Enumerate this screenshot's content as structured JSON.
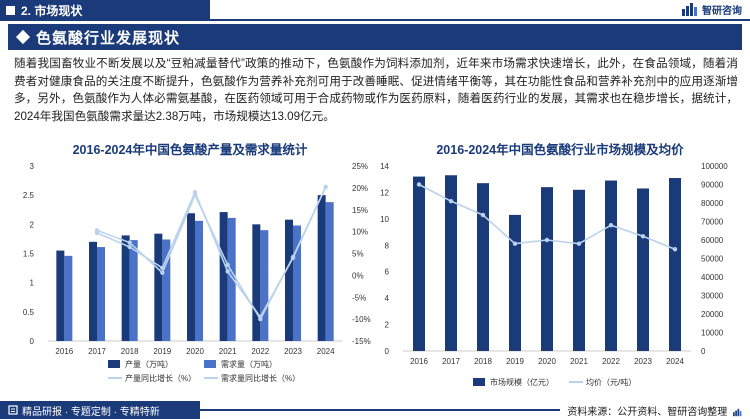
{
  "header": {
    "section": "2. 市场现状",
    "logo_text": "智研咨询",
    "title": "色氨酸行业发展现状"
  },
  "paragraph": "随着我国畜牧业不断发展以及“豆粕减量替代”政策的推动下，色氨酸作为饲料添加剂，近年来市场需求快速增长，此外，在食品领域，随着消费者对健康食品的关注度不断提升，色氨酸作为营养补充剂可用于改善睡眠、促进情绪平衡等，其在功能性食品和营养补充剂中的应用逐渐增多，另外，色氨酸作为人体必需氨基酸，在医药领域可用于合成药物或作为医药原料，随着医药行业的发展，其需求也在稳步增长，据统计，2024年我国色氨酸需求量达2.38万吨，市场规模达13.09亿元。",
  "footer": {
    "slogan": "精品研报 · 专题定制 · 专精特新",
    "source": "资料来源：公开资料、智研咨询整理"
  },
  "colors": {
    "navy": "#1a3a7a",
    "blue": "#4a72c8",
    "light": "#b9d3ee"
  },
  "chart_data": [
    {
      "type": "bar",
      "title": "2016-2024年中国色氨酸产量及需求量统计",
      "categories": [
        "2016",
        "2017",
        "2018",
        "2019",
        "2020",
        "2021",
        "2022",
        "2023",
        "2024"
      ],
      "ylim": [
        0,
        3
      ],
      "yticks": [
        "0",
        "0.5",
        "1",
        "1.5",
        "2",
        "2.5",
        "3"
      ],
      "y2lim": [
        -15,
        25
      ],
      "y2ticks": [
        "-15%",
        "-10%",
        "-5%",
        "0%",
        "5%",
        "10%",
        "15%",
        "20%",
        "25%"
      ],
      "series": [
        {
          "name": "产量（万吨）",
          "kind": "bar",
          "color": "#1a3a7a",
          "values": [
            1.55,
            1.7,
            1.81,
            1.84,
            2.19,
            2.21,
            2.0,
            2.08,
            2.5
          ]
        },
        {
          "name": "需求量（万吨）",
          "kind": "bar",
          "color": "#4a72c8",
          "values": [
            1.46,
            1.61,
            1.73,
            1.74,
            2.06,
            2.11,
            1.9,
            1.98,
            2.38
          ]
        },
        {
          "name": "产量同比增长（%）",
          "kind": "line",
          "color": "#b9d3ee",
          "axis": "right",
          "values": [
            null,
            9.7,
            6.5,
            1.7,
            19.0,
            0.9,
            -9.5,
            4.0,
            20.2
          ]
        },
        {
          "name": "需求量同比增长（%）",
          "kind": "line",
          "color": "#b9d3ee",
          "axis": "right",
          "values": [
            null,
            10.3,
            7.5,
            0.6,
            18.4,
            2.4,
            -10.0,
            4.2,
            20.2
          ]
        }
      ]
    },
    {
      "type": "bar",
      "title": "2016-2024年中国色氨酸行业市场规模及均价",
      "categories": [
        "2016",
        "2017",
        "2018",
        "2019",
        "2020",
        "2021",
        "2022",
        "2023",
        "2024"
      ],
      "ylim": [
        0,
        14
      ],
      "yticks": [
        "0",
        "2",
        "4",
        "6",
        "8",
        "10",
        "12",
        "14"
      ],
      "y2lim": [
        0,
        100000
      ],
      "y2ticks": [
        "0",
        "10000",
        "20000",
        "30000",
        "40000",
        "50000",
        "60000",
        "70000",
        "80000",
        "90000",
        "100000"
      ],
      "series": [
        {
          "name": "市场规模（亿元）",
          "kind": "bar",
          "color": "#1a3a7a",
          "values": [
            13.2,
            13.3,
            12.7,
            10.3,
            12.4,
            12.2,
            12.9,
            12.3,
            13.09
          ]
        },
        {
          "name": "均价（元/吨）",
          "kind": "line",
          "color": "#b9d3ee",
          "axis": "right",
          "values": [
            90000,
            81000,
            73500,
            58000,
            60000,
            58000,
            68000,
            62000,
            55000
          ]
        }
      ]
    }
  ]
}
